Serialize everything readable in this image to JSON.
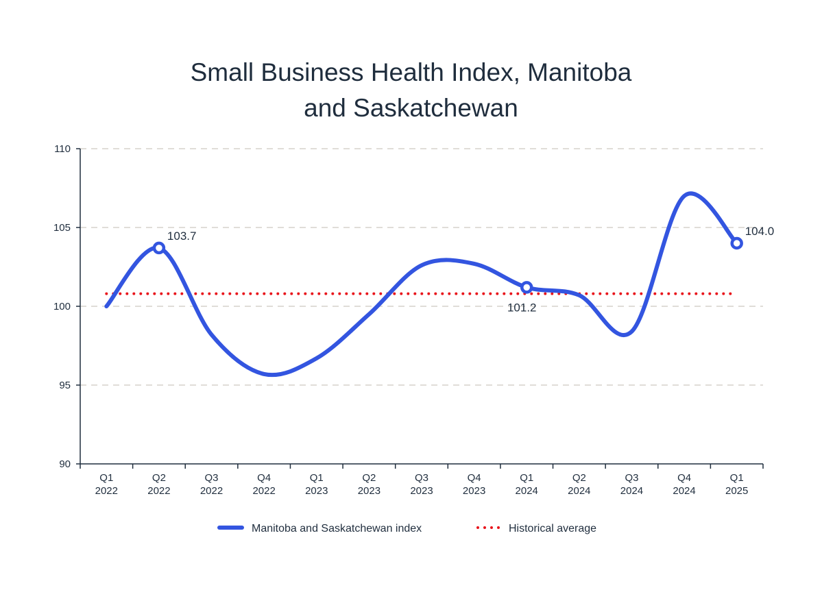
{
  "chart_data": {
    "type": "line",
    "title_lines": [
      "Small Business Health Index, Manitoba",
      "and Saskatchewan"
    ],
    "categories": [
      [
        "Q1",
        "2022"
      ],
      [
        "Q2",
        "2022"
      ],
      [
        "Q3",
        "2022"
      ],
      [
        "Q4",
        "2022"
      ],
      [
        "Q1",
        "2023"
      ],
      [
        "Q2",
        "2023"
      ],
      [
        "Q3",
        "2023"
      ],
      [
        "Q4",
        "2023"
      ],
      [
        "Q1",
        "2024"
      ],
      [
        "Q2",
        "2024"
      ],
      [
        "Q3",
        "2024"
      ],
      [
        "Q4",
        "2024"
      ],
      [
        "Q1",
        "2025"
      ]
    ],
    "ylim": [
      90,
      110
    ],
    "yticks": [
      "90",
      "95",
      "100",
      "105",
      "110"
    ],
    "grid": "horizontal dashed",
    "series": [
      {
        "name": "Manitoba and Saskatchewan index",
        "color": "#3355e0",
        "style": "solid smoothed",
        "values": [
          100.0,
          103.7,
          98.2,
          95.7,
          96.7,
          99.5,
          102.6,
          102.7,
          101.2,
          100.7,
          98.4,
          107.0,
          104.0
        ]
      },
      {
        "name": "Historical average",
        "color": "#e8141b",
        "style": "dotted",
        "value": 100.8
      }
    ],
    "data_labels": [
      {
        "index": 1,
        "text": "103.7",
        "position": "above-right"
      },
      {
        "index": 8,
        "text": "101.2",
        "position": "below"
      },
      {
        "index": 12,
        "text": "104.0",
        "position": "above-right"
      }
    ],
    "legend_position": "bottom"
  }
}
